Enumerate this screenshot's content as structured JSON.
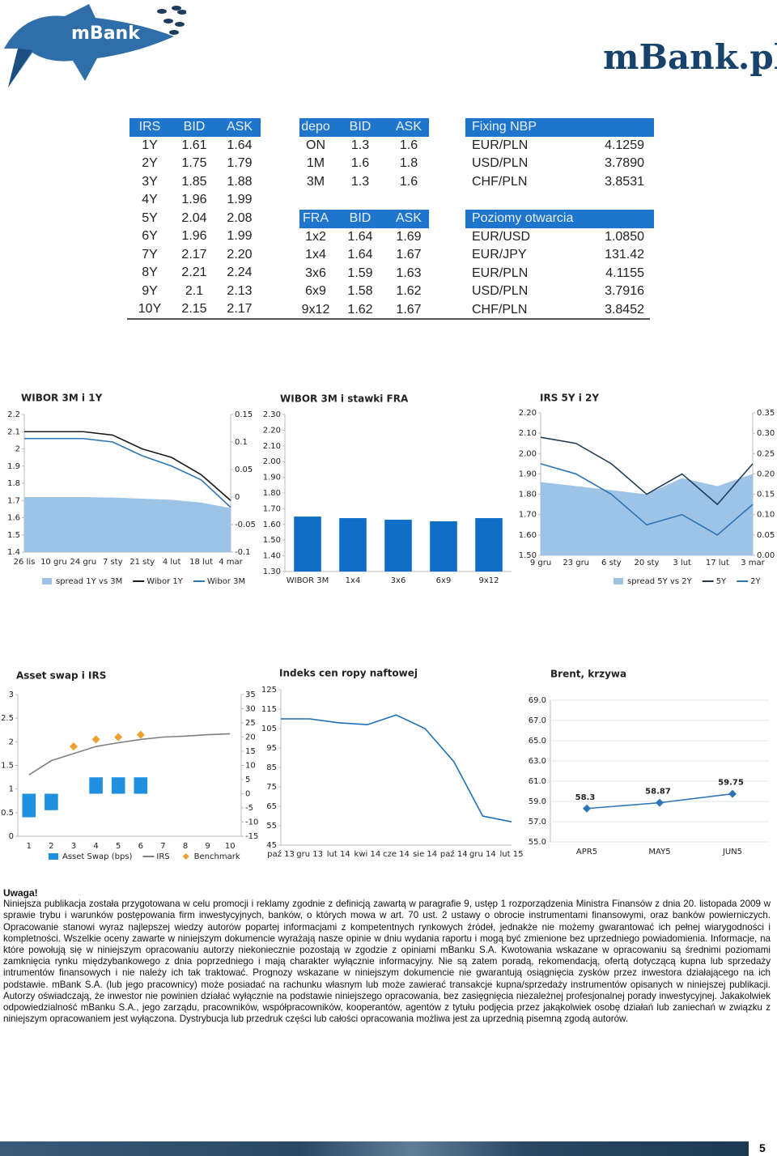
{
  "header": {
    "logo": "mBank",
    "site": "mBank.pl"
  },
  "tables": {
    "irs": {
      "header": [
        "IRS",
        "BID",
        "ASK"
      ],
      "rows": [
        [
          "1Y",
          "1.61",
          "1.64"
        ],
        [
          "2Y",
          "1.75",
          "1.79"
        ],
        [
          "3Y",
          "1.85",
          "1.88"
        ],
        [
          "4Y",
          "1.96",
          "1.99"
        ],
        [
          "5Y",
          "2.04",
          "2.08"
        ],
        [
          "6Y",
          "1.96",
          "1.99"
        ],
        [
          "7Y",
          "2.17",
          "2.20"
        ],
        [
          "8Y",
          "2.21",
          "2.24"
        ],
        [
          "9Y",
          "2.1",
          "2.13"
        ],
        [
          "10Y",
          "2.15",
          "2.17"
        ]
      ]
    },
    "depo": {
      "header": [
        "depo",
        "BID",
        "ASK"
      ],
      "rows": [
        [
          "ON",
          "1.3",
          "1.6"
        ],
        [
          "1M",
          "1.6",
          "1.8"
        ],
        [
          "3M",
          "1.3",
          "1.6"
        ]
      ]
    },
    "fra": {
      "header": [
        "FRA",
        "BID",
        "ASK"
      ],
      "rows": [
        [
          "1x2",
          "1.64",
          "1.69"
        ],
        [
          "1x4",
          "1.64",
          "1.67"
        ],
        [
          "3x6",
          "1.59",
          "1.63"
        ],
        [
          "6x9",
          "1.58",
          "1.62"
        ],
        [
          "9x12",
          "1.62",
          "1.67"
        ]
      ]
    },
    "fixing": {
      "header": "Fixing NBP",
      "rows": [
        [
          "EUR/PLN",
          "4.1259"
        ],
        [
          "USD/PLN",
          "3.7890"
        ],
        [
          "CHF/PLN",
          "3.8531"
        ]
      ]
    },
    "opening": {
      "header": "Poziomy otwarcia",
      "rows": [
        [
          "EUR/USD",
          "1.0850"
        ],
        [
          "EUR/JPY",
          "131.42"
        ],
        [
          "EUR/PLN",
          "4.1155"
        ],
        [
          "USD/PLN",
          "3.7916"
        ],
        [
          "CHF/PLN",
          "3.8452"
        ]
      ]
    }
  },
  "charts": [
    {
      "type": "line",
      "title": "WIBOR 3M i 1Y",
      "categories": [
        "26 lis",
        "10 gru",
        "24 gru",
        "7 sty",
        "21 sty",
        "4 lut",
        "18 lut",
        "4 mar"
      ],
      "ylim": [
        1.4,
        2.2
      ],
      "yticks": [
        1.4,
        1.5,
        1.6,
        1.7,
        1.8,
        1.9,
        2,
        2.1,
        2.2
      ],
      "y2lim": [
        -0.1,
        0.15
      ],
      "y2ticks": [
        -0.1,
        -0.05,
        0,
        0.05,
        0.1,
        0.15
      ],
      "legend": "bottom",
      "series": [
        {
          "name": "spread 1Y vs 3M",
          "type": "area",
          "axis": "y2",
          "color": "#9dc3e6",
          "values": [
            0.0,
            0.0,
            0.0,
            -0.001,
            -0.003,
            -0.005,
            -0.01,
            -0.02
          ]
        },
        {
          "name": "Wibor 1Y",
          "color": "#1a1a1a",
          "values": [
            2.1,
            2.1,
            2.1,
            2.08,
            2.0,
            1.95,
            1.85,
            1.7
          ]
        },
        {
          "name": "Wibor 3M",
          "color": "#2e75b6",
          "values": [
            2.06,
            2.06,
            2.06,
            2.04,
            1.96,
            1.9,
            1.82,
            1.66
          ]
        }
      ]
    },
    {
      "type": "bar",
      "title": "WIBOR 3M i stawki FRA",
      "categories": [
        "WIBOR 3M",
        "1x4",
        "3x6",
        "6x9",
        "9x12"
      ],
      "values": [
        1.65,
        1.64,
        1.63,
        1.62,
        1.64
      ],
      "color": "#0f6fc6",
      "ylim": [
        1.3,
        2.3
      ],
      "yticks": [
        {
          "value": 1.3,
          "label": "1.30"
        },
        {
          "value": 1.4,
          "label": "1.40"
        },
        {
          "value": 1.5,
          "label": "1.50"
        },
        {
          "value": 1.6,
          "label": "1.60"
        },
        {
          "value": 1.7,
          "label": "1.70"
        },
        {
          "value": 1.8,
          "label": "1.80"
        },
        {
          "value": 1.9,
          "label": "1.90"
        },
        {
          "value": 2.0,
          "label": "2.00"
        },
        {
          "value": 2.1,
          "label": "2.10"
        },
        {
          "value": 2.2,
          "label": "2.20"
        },
        {
          "value": 2.3,
          "label": "2.30"
        }
      ]
    },
    {
      "type": "line",
      "title": "IRS 5Y i 2Y",
      "categories": [
        "9 gru",
        "23 gru",
        "6 sty",
        "20 sty",
        "3 lut",
        "17 lut",
        "3 mar"
      ],
      "ylim": [
        1.5,
        2.2
      ],
      "yticks": [
        {
          "value": 1.5,
          "label": "1.50"
        },
        {
          "value": 1.6,
          "label": "1.60"
        },
        {
          "value": 1.7,
          "label": "1.70"
        },
        {
          "value": 1.8,
          "label": "1.80"
        },
        {
          "value": 1.9,
          "label": "1.90"
        },
        {
          "value": 2.0,
          "label": "2.00"
        },
        {
          "value": 2.1,
          "label": "2.10"
        },
        {
          "value": 2.2,
          "label": "2.20"
        }
      ],
      "y2lim": [
        0,
        0.35
      ],
      "y2ticks": [
        {
          "value": 0,
          "label": "0.00"
        },
        0.05,
        {
          "value": 0.1,
          "label": "0.10"
        },
        0.15,
        {
          "value": 0.2,
          "label": "0.20"
        },
        0.25,
        {
          "value": 0.3,
          "label": "0.30"
        },
        0.35
      ],
      "legend": "bottom",
      "series": [
        {
          "name": "spread 5Y vs 2Y",
          "type": "area",
          "axis": "y2",
          "color": "#9dc3e6",
          "values": [
            0.18,
            0.17,
            0.16,
            0.15,
            0.19,
            0.17,
            0.2
          ]
        },
        {
          "name": "5Y",
          "color": "#1f3b57",
          "values": [
            2.08,
            2.05,
            1.95,
            1.8,
            1.9,
            1.75,
            1.95
          ]
        },
        {
          "name": "2Y",
          "color": "#2e75b6",
          "values": [
            1.95,
            1.9,
            1.8,
            1.65,
            1.7,
            1.6,
            1.75
          ]
        }
      ]
    },
    {
      "type": "bar",
      "title": "Asset swap i IRS",
      "categories": [
        1,
        2,
        3,
        4,
        5,
        6,
        7,
        8,
        9,
        10
      ],
      "ylim": [
        0,
        3
      ],
      "yticks": [
        0,
        0.5,
        1,
        1.5,
        2,
        2.5,
        3
      ],
      "y2lim": [
        -15,
        35
      ],
      "y2ticks": [
        -15,
        -10,
        -5,
        0,
        5,
        10,
        15,
        20,
        25,
        30,
        35
      ],
      "legend": "bottom",
      "series": [
        {
          "name": "Asset Swap (bps)",
          "axis": "y2",
          "color": "#1f8fe0",
          "values": [
            -8.3,
            -5.8,
            null,
            5.8,
            5.8,
            5.8,
            null,
            null,
            null,
            null
          ]
        },
        {
          "name": "IRS",
          "type": "line",
          "color": "#808080",
          "values": [
            1.3,
            1.6,
            1.75,
            1.9,
            1.98,
            2.05,
            2.1,
            2.12,
            2.15,
            2.17
          ]
        },
        {
          "name": "Benchmark",
          "type": "marker",
          "color": "#f0a030",
          "values": [
            null,
            null,
            1.9,
            2.05,
            2.1,
            2.15,
            null,
            null,
            null,
            null
          ]
        }
      ]
    },
    {
      "type": "line",
      "title": "Indeks cen ropy naftowej",
      "categories": [
        "paź 13",
        "gru 13",
        "lut 14",
        "kwi 14",
        "cze 14",
        "sie 14",
        "paź 14",
        "gru 14",
        "lut 15"
      ],
      "values": [
        110,
        110,
        108,
        107,
        112,
        105,
        88,
        60,
        57
      ],
      "color": "#1f6fb8",
      "ylim": [
        45,
        125
      ],
      "yticks": [
        45,
        55,
        65,
        75,
        85,
        95,
        105,
        115,
        125
      ]
    },
    {
      "type": "line",
      "title": "Brent, krzywa",
      "categories": [
        "APR5",
        "MAY5",
        "JUN5"
      ],
      "values": [
        58.3,
        58.87,
        59.75
      ],
      "color": "#2e75b6",
      "markers": "diamond",
      "data_labels": true,
      "grid": true,
      "ylim": [
        55,
        69
      ],
      "yticks": [
        {
          "value": 55,
          "label": "55.0"
        },
        {
          "value": 57,
          "label": "57.0"
        },
        {
          "value": 59,
          "label": "59.0"
        },
        {
          "value": 61,
          "label": "61.0"
        },
        {
          "value": 63,
          "label": "63.0"
        },
        {
          "value": 65,
          "label": "65.0"
        },
        {
          "value": 67,
          "label": "67.0"
        },
        {
          "value": 69,
          "label": "69.0"
        }
      ]
    }
  ],
  "disclaimer": {
    "heading": "Uwaga!",
    "text": "Niniejsza publikacja została przygotowana w celu promocji i reklamy zgodnie z definicją zawartą w paragrafie 9, ustęp 1 rozporządzenia Ministra Finansów z dnia 20. listopada 2009 w sprawie trybu i warunków postępowania firm inwestycyjnych, banków, o których mowa w art. 70 ust. 2 ustawy o obrocie instrumentami finansowymi, oraz banków powierniczych. Opracowanie stanowi wyraz najlepszej wiedzy autorów popartej informacjami z kompetentnych rynkowych źródeł, jednakże nie możemy gwarantować ich pełnej wiarygodności i kompletności. Wszelkie oceny zawarte w niniejszym dokumencie wyrażają nasze opinie w dniu wydania raportu i mogą być zmienione bez uprzedniego powiadomienia. Informacje, na które powołują się w niniejszym opracowaniu autorzy niekoniecznie pozostają w zgodzie z opiniami mBanku S.A. Kwotowania wskazane w opracowaniu są średnimi poziomami zamknięcia rynku międzybankowego z dnia poprzedniego i mają charakter wyłącznie informacyjny. Nie są zatem poradą, rekomendacją, ofertą dotyczącą kupna lub sprzedaży intrumentów finansowych i nie należy ich tak traktować. Prognozy wskazane w niniejszym dokumencie nie gwarantują osiągnięcia zysków przez inwestora działającego na ich podstawie. mBank S.A. (lub jego pracownicy) może posiadać na rachunku własnym lub może zawierać transakcje kupna/sprzedaży instrumentów opisanych w niniejszej publikacji. Autorzy oświadczają, że inwestor nie powinien działać wyłącznie na podstawie niniejszego opracowania, bez zasięgnięcia niezależnej profesjonalnej porady inwestycyjnej. Jakakolwiek odpowiedzialność mBanku S.A., jego zarządu, pracowników, współpracowników, kooperantów, agentów z tytułu podjęcia przez jakąkolwiek osobę działań lub zaniechań w związku z niniejszym opracowaniem jest wyłączona. Dystrybucja lub przedruk części lub całości opracowania możliwa jest za uprzednią pisemną zgodą autorów."
  },
  "page_number": "5"
}
